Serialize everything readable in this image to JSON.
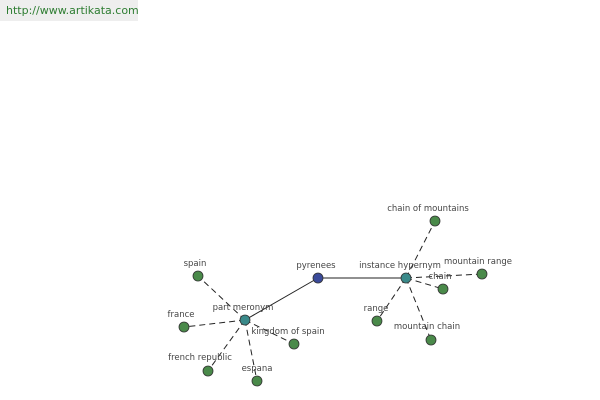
{
  "header": {
    "url": "http://www.artikata.com"
  },
  "nodes": [
    {
      "label": "pyrenees"
    },
    {
      "label": "part meronym"
    },
    {
      "label": "instance hypernym"
    },
    {
      "label": "spain"
    },
    {
      "label": "france"
    },
    {
      "label": "french republic"
    },
    {
      "label": "espana"
    },
    {
      "label": "kingdom of spain"
    },
    {
      "label": "chain of mountains"
    },
    {
      "label": "mountain range"
    },
    {
      "label": "chain"
    },
    {
      "label": "range"
    },
    {
      "label": "mountain chain"
    }
  ]
}
